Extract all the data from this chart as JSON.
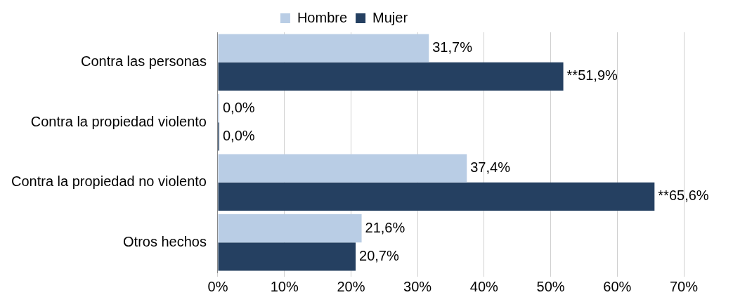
{
  "chart_data": {
    "type": "bar",
    "orientation": "horizontal",
    "categories": [
      "Contra las personas",
      "Contra la propiedad violento",
      "Contra la propiedad no violento",
      "Otros hechos"
    ],
    "series": [
      {
        "name": "Hombre",
        "color": "#b9cde5",
        "values": [
          31.7,
          0,
          37.4,
          21.6
        ],
        "value_labels": [
          "31,7%",
          "0,0%",
          "37,4%",
          "21,6%"
        ]
      },
      {
        "name": "Mujer",
        "color": "#254061",
        "values": [
          51.9,
          0,
          65.6,
          20.7
        ],
        "value_labels": [
          "**51,9%",
          "0,0%",
          "**65,6%",
          "20,7%"
        ]
      }
    ],
    "xlim": [
      0,
      70
    ],
    "xticks": [
      {
        "value": 0,
        "label": "0%"
      },
      {
        "value": 10,
        "label": "10%"
      },
      {
        "value": 20,
        "label": "20%"
      },
      {
        "value": 30,
        "label": "30%"
      },
      {
        "value": 40,
        "label": "40%"
      },
      {
        "value": 50,
        "label": "50%"
      },
      {
        "value": 60,
        "label": "60%"
      },
      {
        "value": 70,
        "label": "70%"
      }
    ],
    "grid": "x",
    "legend": "top"
  }
}
